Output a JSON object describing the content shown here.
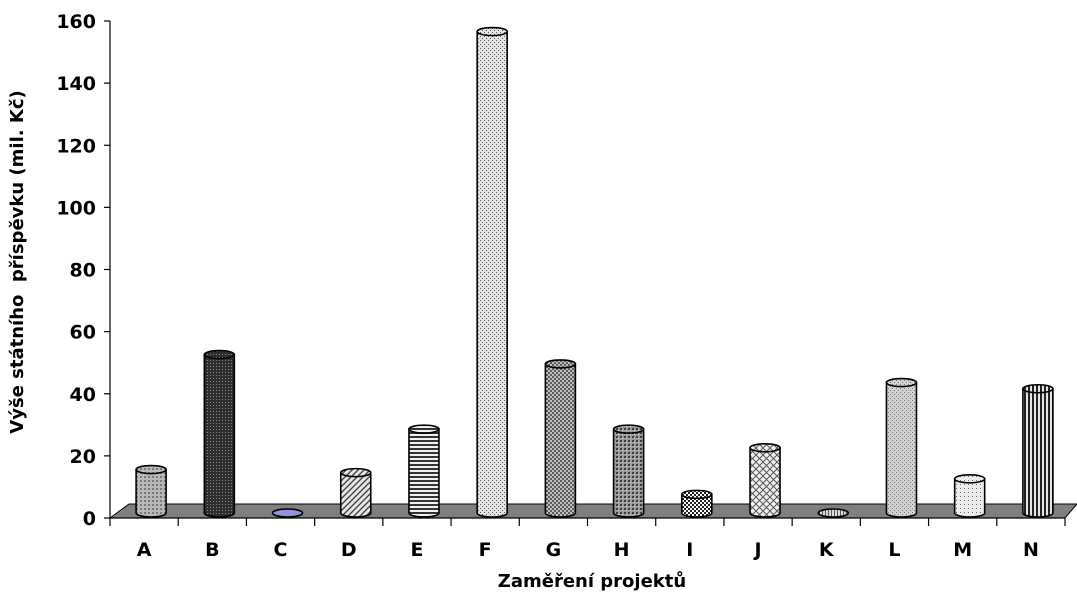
{
  "chart_data": {
    "type": "bar",
    "title": "",
    "xlabel": "Zaměření projektů",
    "ylabel": "Výše státního  příspěvku (mil. Kč)",
    "categories": [
      "A",
      "B",
      "C",
      "D",
      "E",
      "F",
      "G",
      "H",
      "I",
      "J",
      "K",
      "L",
      "M",
      "N"
    ],
    "values": [
      14,
      51,
      0,
      13,
      27,
      155,
      48,
      27,
      6,
      21,
      0,
      42,
      11,
      40
    ],
    "ylim": [
      0,
      160
    ],
    "yticks": [
      0,
      20,
      40,
      60,
      80,
      100,
      120,
      140,
      160
    ],
    "grid": false,
    "legend": "none"
  }
}
